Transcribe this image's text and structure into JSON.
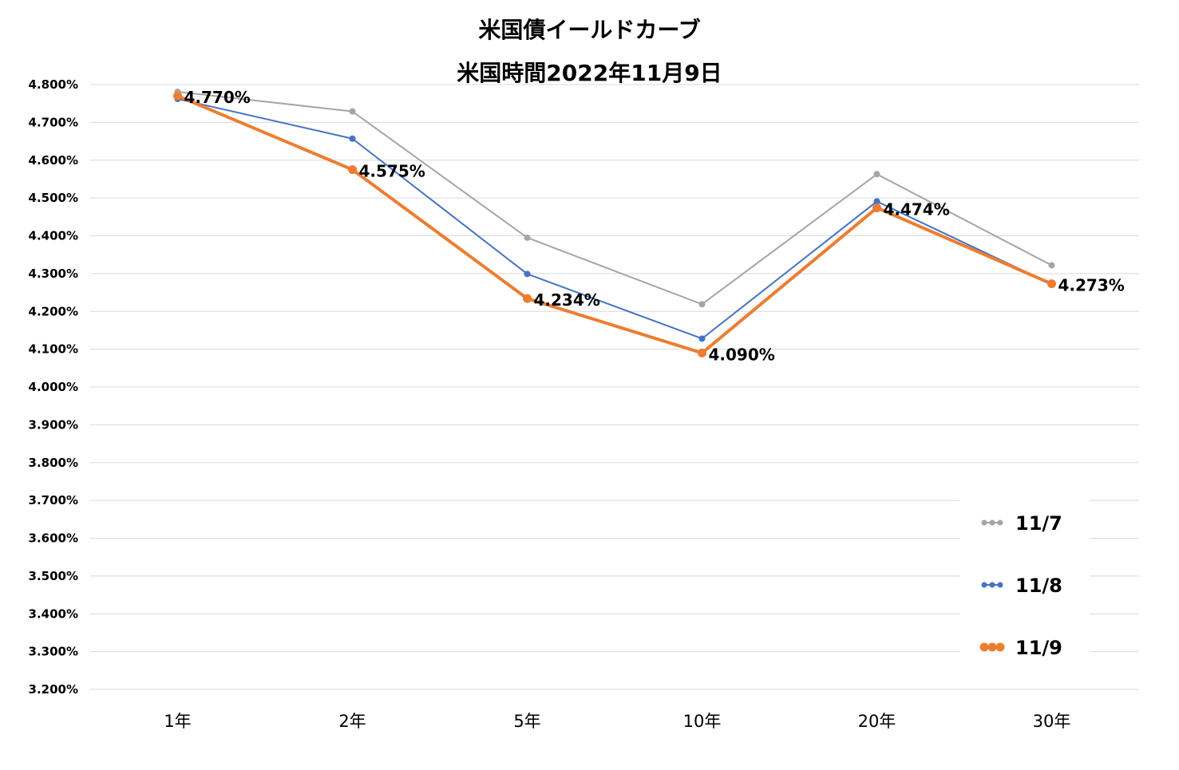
{
  "chart_data": {
    "type": "line",
    "title": "米国債イールドカーブ",
    "subtitle": "米国時間2022年11月9日",
    "categories": [
      "1年",
      "2年",
      "5年",
      "10年",
      "20年",
      "30年"
    ],
    "ylim": [
      3.2,
      4.8
    ],
    "ytick_step": 0.1,
    "ytick_decimals": 3,
    "ytick_suffix": "%",
    "grid": true,
    "legend_position": "bottom-right",
    "series": [
      {
        "name": "11/7",
        "color": "#a5a5a5",
        "values": [
          4.781,
          4.729,
          4.395,
          4.219,
          4.563,
          4.322
        ]
      },
      {
        "name": "11/8",
        "color": "#4472c4",
        "values": [
          4.762,
          4.657,
          4.299,
          4.128,
          4.491,
          4.272
        ]
      },
      {
        "name": "11/9",
        "color": "#ed7d31",
        "values": [
          4.77,
          4.575,
          4.234,
          4.09,
          4.474,
          4.273
        ]
      }
    ],
    "data_labels": {
      "series": "11/9",
      "labels": [
        "4.770%",
        "4.575%",
        "4.234%",
        "4.090%",
        "4.474%",
        "4.273%"
      ]
    }
  }
}
